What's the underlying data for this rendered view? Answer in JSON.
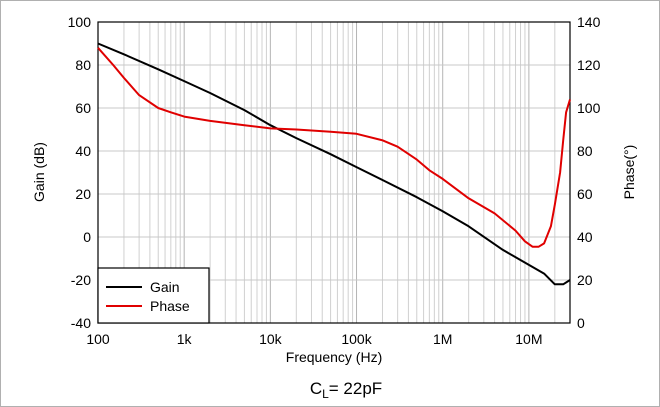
{
  "chart_data": {
    "type": "line",
    "xlabel": "Frequency (Hz)",
    "ylabel_left": "Gain (dB)",
    "ylabel_right": "Phase(°)",
    "x_scale": "log",
    "xlim": [
      100,
      30000000
    ],
    "ylim_left": [
      -40,
      100
    ],
    "ylim_right": [
      0,
      140
    ],
    "x_tick_values": [
      100,
      1000,
      10000,
      100000,
      1000000,
      10000000
    ],
    "x_tick_labels": [
      "100",
      "1k",
      "10k",
      "100k",
      "1M",
      "10M"
    ],
    "y_left_ticks": [
      -40,
      -20,
      0,
      20,
      40,
      60,
      80,
      100
    ],
    "y_right_ticks": [
      0,
      20,
      40,
      60,
      80,
      100,
      120,
      140
    ],
    "grid": true,
    "legend_position": "bottom-left",
    "series": [
      {
        "name": "Gain",
        "axis": "left",
        "color": "#000000",
        "x": [
          100,
          200,
          500,
          1000,
          2000,
          5000,
          10000,
          20000,
          50000,
          100000,
          200000,
          500000,
          1000000,
          2000000,
          5000000,
          10000000,
          15000000,
          20000000,
          25000000,
          30000000
        ],
        "y": [
          90,
          85,
          78,
          72.5,
          67,
          59,
          52,
          46,
          38.5,
          32.5,
          26.5,
          18.5,
          12,
          5,
          -6,
          -13,
          -17,
          -22,
          -22,
          -20
        ]
      },
      {
        "name": "Phase",
        "axis": "right",
        "color": "#e00000",
        "x": [
          100,
          150,
          200,
          300,
          500,
          700,
          1000,
          2000,
          5000,
          10000,
          20000,
          50000,
          100000,
          200000,
          300000,
          500000,
          700000,
          1000000,
          2000000,
          4000000,
          7000000,
          9000000,
          11000000,
          13000000,
          15000000,
          18000000,
          20000000,
          23000000,
          25000000,
          27000000,
          30000000
        ],
        "y": [
          128,
          120,
          114,
          106,
          100,
          98,
          96,
          94,
          92,
          90.5,
          90,
          89,
          88,
          85,
          82,
          76,
          71,
          67,
          58,
          51,
          43,
          38,
          35.5,
          35.5,
          37,
          45,
          55,
          70,
          85,
          98,
          104
        ]
      }
    ]
  },
  "caption": {
    "main": "C",
    "sub": "L",
    "rest": "= 22pF"
  }
}
